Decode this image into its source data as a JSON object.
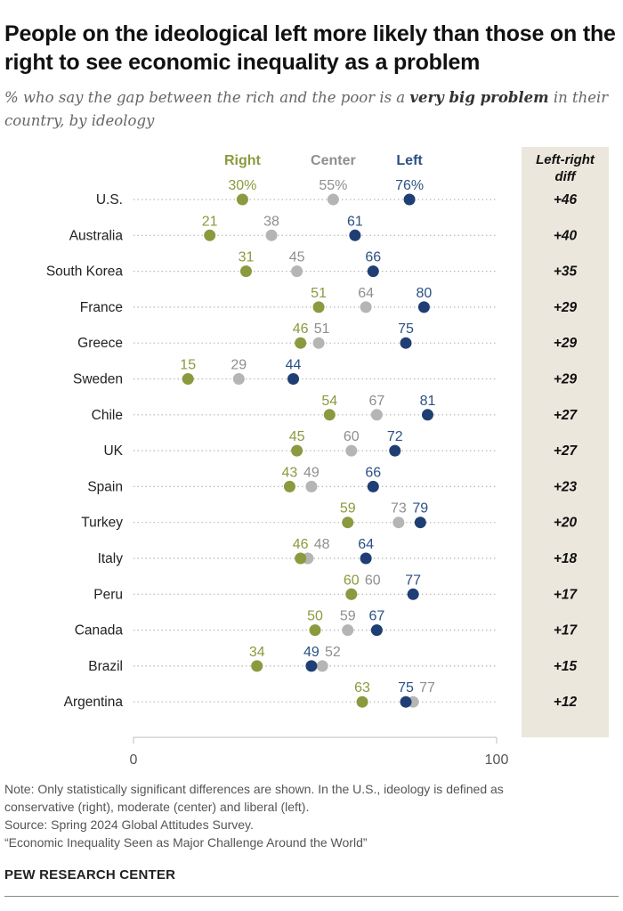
{
  "title": "People on the ideological left more likely than those on the right to see economic inequality as a problem",
  "subtitle_pre": "% who say the gap between the rich and the poor is a ",
  "subtitle_em": "very big problem",
  "subtitle_post": " in their country, by ideology",
  "colors": {
    "right": "#8a9a3e",
    "center": "#b5b5b5",
    "left": "#1f3f74",
    "right_label": "#8a9a3e",
    "center_label": "#8f8f8f",
    "left_label": "#2b5183",
    "diff_panel": "#ece7dd"
  },
  "chart_data": {
    "type": "dot",
    "title": "People on the ideological left more likely than those on the right to see economic inequality as a problem",
    "xlim": [
      0,
      100
    ],
    "x_ticks": [
      "0",
      "100"
    ],
    "legend": [
      "Right",
      "Center",
      "Left"
    ],
    "diff_header": [
      "Left-right",
      "diff"
    ],
    "categories": [
      "U.S.",
      "Australia",
      "South Korea",
      "France",
      "Greece",
      "Sweden",
      "Chile",
      "UK",
      "Spain",
      "Turkey",
      "Italy",
      "Peru",
      "Canada",
      "Brazil",
      "Argentina"
    ],
    "series": [
      {
        "name": "Right",
        "values": [
          30,
          21,
          31,
          51,
          46,
          15,
          54,
          45,
          43,
          59,
          46,
          60,
          50,
          34,
          63
        ]
      },
      {
        "name": "Center",
        "values": [
          55,
          38,
          45,
          64,
          51,
          29,
          67,
          60,
          49,
          73,
          48,
          60,
          59,
          52,
          77
        ]
      },
      {
        "name": "Left",
        "values": [
          76,
          61,
          66,
          80,
          75,
          44,
          81,
          72,
          66,
          79,
          64,
          77,
          67,
          49,
          75
        ]
      }
    ],
    "first_row_suffix": "%",
    "diffs": [
      "+46",
      "+40",
      "+35",
      "+29",
      "+29",
      "+29",
      "+27",
      "+27",
      "+23",
      "+20",
      "+18",
      "+17",
      "+17",
      "+15",
      "+12"
    ]
  },
  "notes": [
    "Note: Only statistically significant differences are shown. In the U.S., ideology is defined as",
    "conservative (right), moderate (center) and liberal (left).",
    "Source: Spring 2024 Global Attitudes Survey.",
    "“Economic Inequality Seen as Major Challenge Around the World”"
  ],
  "brand": "PEW RESEARCH CENTER"
}
